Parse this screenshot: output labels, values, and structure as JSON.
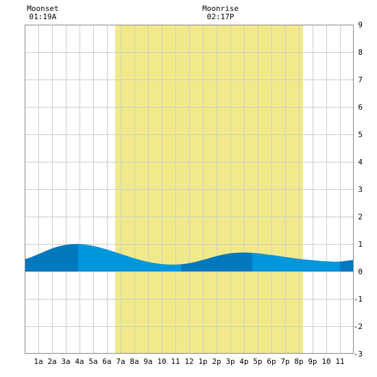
{
  "chart_data": {
    "type": "area",
    "title": "",
    "xlabel": "",
    "ylabel": "",
    "x_tick_labels": [
      "1a",
      "2a",
      "3a",
      "4a",
      "5a",
      "6a",
      "7a",
      "8a",
      "9a",
      "10",
      "11",
      "12",
      "1p",
      "2p",
      "3p",
      "4p",
      "5p",
      "6p",
      "7p",
      "8p",
      "9p",
      "10",
      "11"
    ],
    "xlim_hours": [
      0,
      24
    ],
    "ylim": [
      -3,
      9
    ],
    "y_tick_labels": [
      "-3",
      "-2",
      "-1",
      "0",
      "1",
      "2",
      "3",
      "4",
      "5",
      "6",
      "7",
      "8",
      "9"
    ],
    "grid": true,
    "daylight_hours": [
      6.6,
      20.3
    ],
    "annotations": [
      {
        "label": "Moonset",
        "time": "01:19A",
        "hour": 1.32
      },
      {
        "label": "Moonrise",
        "time": "02:17P",
        "hour": 14.28
      }
    ],
    "series": [
      {
        "x_hours": [
          0,
          1,
          2,
          3,
          4,
          5,
          6,
          7,
          8,
          9,
          10,
          11,
          12,
          13,
          14,
          15,
          16,
          17,
          18,
          19,
          20,
          21,
          22,
          23,
          24
        ],
        "values": [
          0.45,
          0.63,
          0.84,
          0.97,
          1.0,
          0.93,
          0.8,
          0.64,
          0.48,
          0.35,
          0.27,
          0.25,
          0.3,
          0.42,
          0.56,
          0.66,
          0.69,
          0.66,
          0.6,
          0.53,
          0.46,
          0.41,
          0.37,
          0.36,
          0.42
        ]
      }
    ],
    "tide_events": [
      {
        "type": "high",
        "hour": 3.9
      },
      {
        "type": "low",
        "hour": 11.4
      },
      {
        "type": "high",
        "hour": 16.6
      },
      {
        "type": "low",
        "hour": 23.0
      }
    ],
    "colors": {
      "background": "#ffffff",
      "daylight": "#f2ea8a",
      "grid": "#cccccc",
      "tide_light": "#0096dc",
      "tide_dark": "#0078be"
    }
  }
}
